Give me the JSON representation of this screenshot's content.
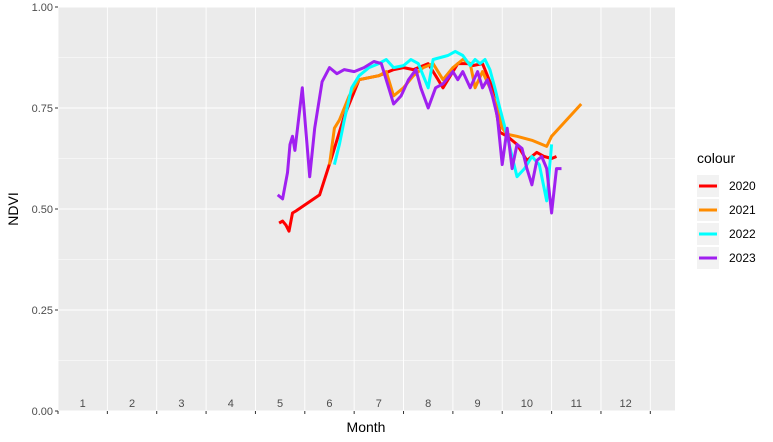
{
  "chart_data": {
    "type": "line",
    "title": "",
    "xlabel": "Month",
    "ylabel": "NDVI",
    "legend_title": "colour",
    "legend_position": "right",
    "grid": true,
    "xlim": [
      0,
      12.5
    ],
    "ylim": [
      0,
      1
    ],
    "x_tick_labels": [
      "1",
      "2",
      "3",
      "4",
      "5",
      "6",
      "7",
      "8",
      "9",
      "10",
      "11",
      "12"
    ],
    "y_ticks": [
      0,
      0.25,
      0.5,
      0.75,
      1
    ],
    "y_tick_labels": [
      "0.00",
      "0.25",
      "0.50",
      "0.75",
      "1.00"
    ],
    "series": [
      {
        "name": "2020",
        "color": "#ff0000",
        "x": [
          4.48,
          4.55,
          4.62,
          4.68,
          4.75,
          4.82,
          5.3,
          5.55,
          5.8,
          6.1,
          6.5,
          6.8,
          7.0,
          7.2,
          7.5,
          7.7,
          7.8,
          8.1,
          8.3,
          8.4,
          8.6,
          8.8,
          8.95,
          9.1,
          9.3,
          9.5,
          9.7,
          9.85,
          10.0,
          10.1
        ],
        "y": [
          0.465,
          0.47,
          0.46,
          0.445,
          0.49,
          0.495,
          0.535,
          0.63,
          0.73,
          0.82,
          0.83,
          0.845,
          0.85,
          0.845,
          0.86,
          0.82,
          0.8,
          0.86,
          0.86,
          0.855,
          0.86,
          0.8,
          0.69,
          0.68,
          0.66,
          0.62,
          0.64,
          0.63,
          0.625,
          0.63
        ]
      },
      {
        "name": "2021",
        "color": "#ff8c00",
        "x": [
          5.5,
          5.6,
          5.7,
          5.9,
          6.1,
          6.3,
          6.5,
          6.65,
          6.8,
          7.0,
          7.2,
          7.4,
          7.6,
          7.8,
          8.0,
          8.2,
          8.35,
          8.45,
          8.6,
          8.75,
          8.9,
          9.0,
          9.1,
          9.3,
          9.6,
          9.9,
          10.0,
          10.6
        ],
        "y": [
          0.61,
          0.7,
          0.72,
          0.78,
          0.82,
          0.825,
          0.83,
          0.84,
          0.78,
          0.8,
          0.83,
          0.85,
          0.86,
          0.82,
          0.85,
          0.87,
          0.86,
          0.8,
          0.84,
          0.8,
          0.75,
          0.7,
          0.685,
          0.68,
          0.67,
          0.655,
          0.68,
          0.76
        ]
      },
      {
        "name": "2022",
        "color": "#00ffff",
        "x": [
          5.6,
          5.7,
          5.8,
          5.95,
          6.1,
          6.3,
          6.5,
          6.65,
          6.8,
          7.0,
          7.15,
          7.3,
          7.5,
          7.6,
          7.75,
          7.9,
          8.05,
          8.2,
          8.35,
          8.45,
          8.55,
          8.65,
          8.75,
          8.85,
          8.95,
          9.1,
          9.2,
          9.3,
          9.45,
          9.6,
          9.75,
          9.9,
          10.0
        ],
        "y": [
          0.61,
          0.66,
          0.72,
          0.8,
          0.83,
          0.85,
          0.86,
          0.87,
          0.85,
          0.855,
          0.87,
          0.86,
          0.8,
          0.87,
          0.875,
          0.88,
          0.89,
          0.88,
          0.855,
          0.87,
          0.86,
          0.87,
          0.845,
          0.8,
          0.75,
          0.68,
          0.63,
          0.58,
          0.6,
          0.63,
          0.61,
          0.52,
          0.66
        ]
      },
      {
        "name": "2023",
        "color": "#a020f0",
        "x": [
          4.45,
          4.55,
          4.65,
          4.7,
          4.75,
          4.8,
          4.95,
          5.1,
          5.2,
          5.35,
          5.5,
          5.65,
          5.8,
          6.0,
          6.2,
          6.4,
          6.55,
          6.7,
          6.8,
          6.95,
          7.1,
          7.25,
          7.35,
          7.5,
          7.65,
          7.8,
          8.0,
          8.1,
          8.2,
          8.35,
          8.5,
          8.6,
          8.7,
          8.8,
          8.9,
          9.0,
          9.1,
          9.2,
          9.3,
          9.4,
          9.5,
          9.6,
          9.7,
          9.8,
          9.9,
          10.0,
          10.1,
          10.2
        ],
        "y": [
          0.535,
          0.525,
          0.59,
          0.66,
          0.68,
          0.645,
          0.8,
          0.58,
          0.7,
          0.815,
          0.85,
          0.835,
          0.845,
          0.84,
          0.85,
          0.865,
          0.86,
          0.8,
          0.76,
          0.78,
          0.82,
          0.845,
          0.8,
          0.75,
          0.8,
          0.81,
          0.84,
          0.82,
          0.84,
          0.8,
          0.84,
          0.8,
          0.82,
          0.78,
          0.73,
          0.61,
          0.7,
          0.6,
          0.66,
          0.65,
          0.6,
          0.56,
          0.62,
          0.63,
          0.6,
          0.49,
          0.6,
          0.6
        ]
      }
    ]
  }
}
